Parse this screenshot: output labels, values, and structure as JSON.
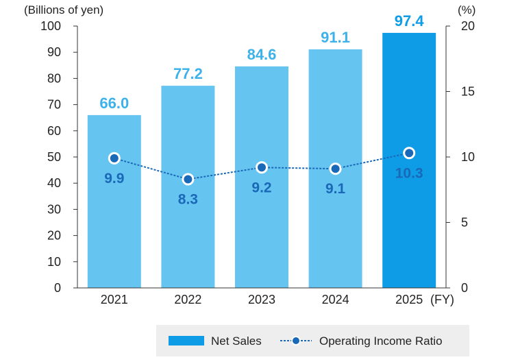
{
  "chart_data": {
    "type": "bar",
    "categories": [
      "2021",
      "2022",
      "2023",
      "2024",
      "2025"
    ],
    "x_unit": "(FY)",
    "series": [
      {
        "name": "Net Sales",
        "type": "bar",
        "axis": "left",
        "values": [
          66.0,
          77.2,
          84.6,
          91.1,
          97.4
        ],
        "labels": [
          "66.0",
          "77.2",
          "84.6",
          "91.1",
          "97.4"
        ],
        "color": "#66c4f0",
        "highlight_color": "#0e9ce6",
        "label_color": "#3cb1ea"
      },
      {
        "name": "Operating Income Ratio",
        "type": "line",
        "axis": "right",
        "values": [
          9.9,
          8.3,
          9.2,
          9.1,
          10.3
        ],
        "labels": [
          "9.9",
          "8.3",
          "9.2",
          "9.1",
          "10.3"
        ],
        "color": "#1a69b8"
      }
    ],
    "left_axis": {
      "unit": "(Billions of yen)",
      "ylim": [
        0,
        100
      ],
      "ticks": [
        "0",
        "10",
        "20",
        "30",
        "40",
        "50",
        "60",
        "70",
        "80",
        "90",
        "100"
      ]
    },
    "right_axis": {
      "unit": "(%)",
      "ylim": [
        0,
        20
      ],
      "ticks": [
        "0",
        "5",
        "10",
        "15",
        "20"
      ]
    },
    "grid": false,
    "legend_placement": "bottom-right",
    "legend_background": "#eeeeee"
  }
}
